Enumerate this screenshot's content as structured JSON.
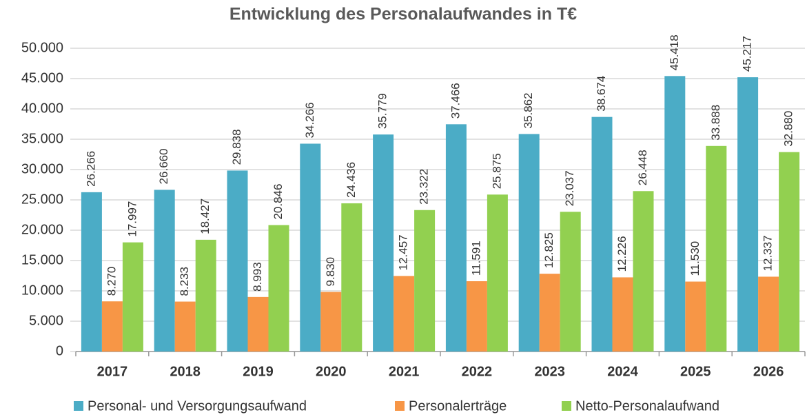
{
  "chart_data": {
    "type": "bar",
    "title": "Entwicklung des Personalaufwandes in T€",
    "categories": [
      "2017",
      "2018",
      "2019",
      "2020",
      "2021",
      "2022",
      "2023",
      "2024",
      "2025",
      "2026"
    ],
    "series": [
      {
        "name": "Personal- und Versorgungsaufwand",
        "color": "#4bacc6",
        "values": [
          26266,
          26660,
          29838,
          34266,
          35779,
          37466,
          35862,
          38674,
          45418,
          45217
        ],
        "value_labels": [
          "26.266",
          "26.660",
          "29.838",
          "34.266",
          "35.779",
          "37.466",
          "35.862",
          "38.674",
          "45.418",
          "45.217"
        ]
      },
      {
        "name": "Personalerträge",
        "color": "#f79646",
        "values": [
          8270,
          8233,
          8993,
          9830,
          12457,
          11591,
          12825,
          12226,
          11530,
          12337
        ],
        "value_labels": [
          "8.270",
          "8.233",
          "8.993",
          "9.830",
          "12.457",
          "11.591",
          "12.825",
          "12.226",
          "11.530",
          "12.337"
        ]
      },
      {
        "name": "Netto-Personalaufwand",
        "color": "#92d050",
        "values": [
          17997,
          18427,
          20846,
          24436,
          23322,
          25875,
          23037,
          26448,
          33888,
          32880
        ],
        "value_labels": [
          "17.997",
          "18.427",
          "20.846",
          "24.436",
          "23.322",
          "25.875",
          "23.037",
          "26.448",
          "33.888",
          "32.880"
        ]
      }
    ],
    "ylim": [
      0,
      50000
    ],
    "yticks": [
      0,
      {
        "value": 5000,
        "label": "5.000"
      },
      {
        "value": 10000,
        "label": "10.000"
      },
      {
        "value": 15000,
        "label": "15.000"
      },
      {
        "value": 20000,
        "label": "20.000"
      },
      {
        "value": 25000,
        "label": "25.000"
      },
      {
        "value": 30000,
        "label": "30.000"
      },
      {
        "value": 35000,
        "label": "35.000"
      },
      {
        "value": 40000,
        "label": "40.000"
      },
      {
        "value": 45000,
        "label": "45.000"
      },
      {
        "value": 50000,
        "label": "50.000"
      }
    ],
    "grid": true,
    "legend": "bottom"
  }
}
